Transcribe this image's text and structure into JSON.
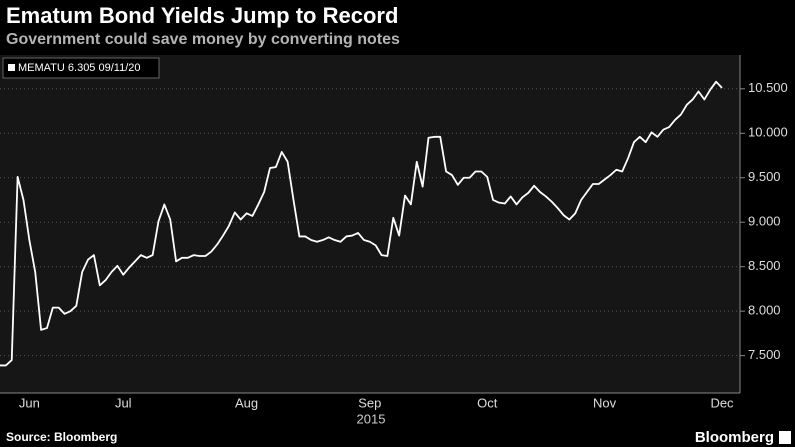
{
  "chart_data": {
    "type": "line",
    "title": "Ematum Bond Yields Jump to Record",
    "subtitle": "Government could save money by converting notes",
    "x_label": "2015",
    "source": "Source: Bloomberg",
    "brand": "Bloomberg",
    "categories": [
      null,
      null,
      null,
      null,
      null,
      "Jun",
      null,
      null,
      null,
      null,
      null,
      null,
      null,
      null,
      null,
      null,
      null,
      null,
      null,
      null,
      null,
      "Jul",
      null,
      null,
      null,
      null,
      null,
      null,
      null,
      null,
      null,
      null,
      null,
      null,
      null,
      null,
      null,
      null,
      null,
      null,
      null,
      null,
      "Aug",
      null,
      null,
      null,
      null,
      null,
      null,
      null,
      null,
      null,
      null,
      null,
      null,
      null,
      null,
      null,
      null,
      null,
      null,
      null,
      null,
      "Sep",
      null,
      null,
      null,
      null,
      null,
      null,
      null,
      null,
      null,
      null,
      null,
      null,
      null,
      null,
      null,
      null,
      null,
      null,
      null,
      "Oct",
      null,
      null,
      null,
      null,
      null,
      null,
      null,
      null,
      null,
      null,
      null,
      null,
      null,
      null,
      null,
      null,
      null,
      null,
      null,
      "Nov",
      null,
      null,
      null,
      null,
      null,
      null,
      null,
      null,
      null,
      null,
      null,
      null,
      null,
      null,
      null,
      null,
      null,
      null,
      null,
      "Dec"
    ],
    "series": [
      {
        "name": "MEMATU 6.305 09/11/20",
        "color": "#ffffff",
        "values": [
          7.39,
          7.39,
          7.45,
          9.51,
          9.25,
          8.8,
          8.44,
          7.79,
          7.81,
          8.04,
          8.04,
          7.97,
          8.0,
          8.06,
          8.44,
          8.58,
          8.63,
          8.29,
          8.35,
          8.44,
          8.51,
          8.41,
          8.49,
          8.56,
          8.63,
          8.6,
          8.63,
          9.01,
          9.2,
          9.03,
          8.56,
          8.6,
          8.6,
          8.63,
          8.62,
          8.62,
          8.67,
          8.75,
          8.85,
          8.96,
          9.11,
          9.03,
          9.1,
          9.07,
          9.2,
          9.34,
          9.61,
          9.62,
          9.79,
          9.68,
          9.25,
          8.84,
          8.84,
          8.8,
          8.78,
          8.8,
          8.83,
          8.8,
          8.78,
          8.84,
          8.85,
          8.88,
          8.8,
          8.78,
          8.74,
          8.63,
          8.62,
          9.05,
          8.85,
          9.3,
          9.2,
          9.68,
          9.4,
          9.95,
          9.96,
          9.96,
          9.57,
          9.53,
          9.42,
          9.5,
          9.5,
          9.57,
          9.57,
          9.51,
          9.25,
          9.22,
          9.21,
          9.29,
          9.2,
          9.28,
          9.33,
          9.41,
          9.34,
          9.29,
          9.23,
          9.16,
          9.08,
          9.03,
          9.1,
          9.25,
          9.34,
          9.43,
          9.43,
          9.48,
          9.53,
          9.59,
          9.57,
          9.72,
          9.9,
          9.96,
          9.9,
          10.01,
          9.96,
          10.04,
          10.07,
          10.15,
          10.21,
          10.32,
          10.38,
          10.47,
          10.38,
          10.49,
          10.58,
          10.51
        ]
      }
    ],
    "ylim": [
      7.08,
      10.88
    ],
    "yticks": [
      {
        "value": 7.5,
        "label": "7.500"
      },
      {
        "value": 8,
        "label": "8.000"
      },
      {
        "value": 8.5,
        "label": "8.500"
      },
      {
        "value": 9,
        "label": "9.000"
      },
      {
        "value": 9.5,
        "label": "9.500"
      },
      {
        "value": 10,
        "label": "10.000"
      },
      {
        "value": 10.5,
        "label": "10.500"
      }
    ],
    "grid": true
  }
}
